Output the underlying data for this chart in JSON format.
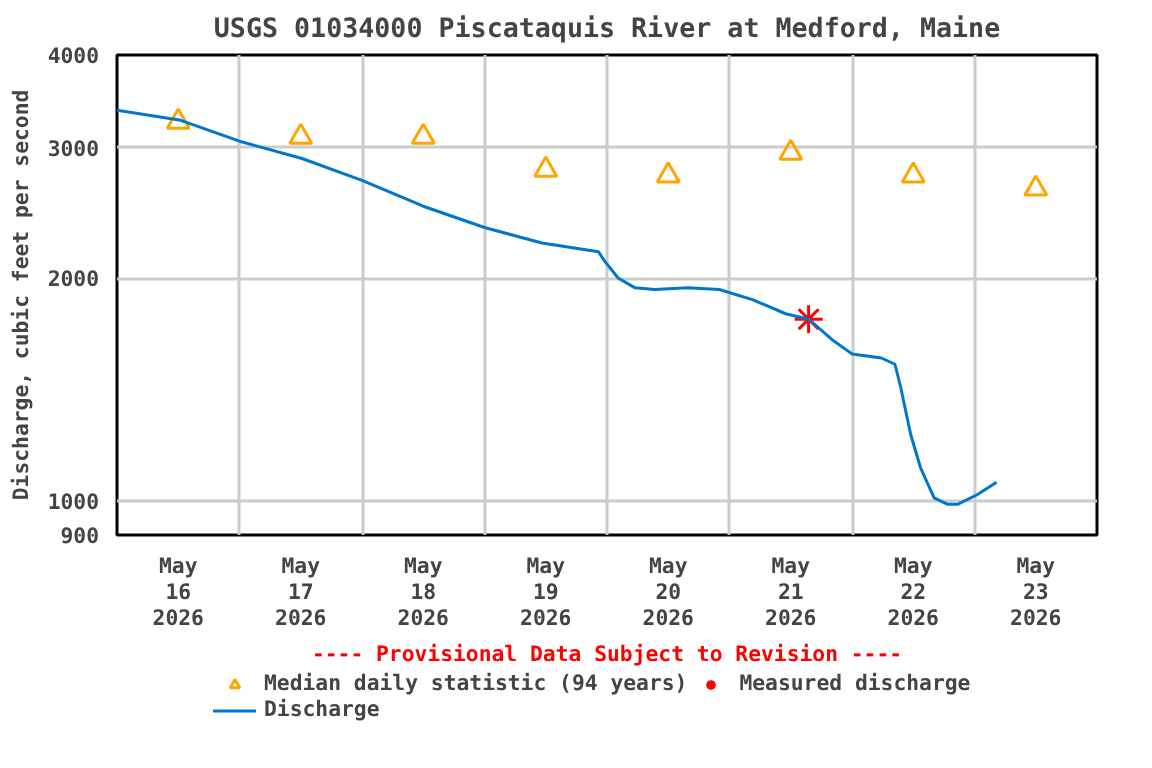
{
  "chart_data": {
    "type": "line",
    "title": "USGS 01034000 Piscataquis River at Medford, Maine",
    "ylabel": "Discharge, cubic feet per second",
    "log": "y",
    "grid": true,
    "legend": "bottom",
    "xlim": [
      "2026-05-16T00:00",
      "2026-05-24T00:00"
    ],
    "xticks": [
      {
        "value": "2026-05-16T12:00",
        "label": "May\n16\n2026"
      },
      {
        "value": "2026-05-17T12:00",
        "label": "May\n17\n2026"
      },
      {
        "value": "2026-05-18T12:00",
        "label": "May\n18\n2026"
      },
      {
        "value": "2026-05-19T12:00",
        "label": "May\n19\n2026"
      },
      {
        "value": "2026-05-20T12:00",
        "label": "May\n20\n2026"
      },
      {
        "value": "2026-05-21T12:00",
        "label": "May\n21\n2026"
      },
      {
        "value": "2026-05-22T12:00",
        "label": "May\n22\n2026"
      },
      {
        "value": "2026-05-23T12:00",
        "label": "May\n23\n2026"
      },
      {
        "value": "2026-05-17T00:00",
        "label": null
      },
      {
        "value": "2026-05-18T00:00",
        "label": null
      },
      {
        "value": "2026-05-19T00:00",
        "label": null
      },
      {
        "value": "2026-05-20T00:00",
        "label": null
      },
      {
        "value": "2026-05-21T00:00",
        "label": null
      },
      {
        "value": "2026-05-22T00:00",
        "label": null
      },
      {
        "value": "2026-05-23T00:00",
        "label": null
      }
    ],
    "ylim": [
      900,
      4000
    ],
    "yticks": [
      900,
      1000,
      2000,
      3000,
      4000
    ],
    "annotations": [
      "---- Provisional Data Subject to Revision ----"
    ],
    "series": [
      {
        "name": "Median daily statistic (94 years)",
        "type": "scatter",
        "marker": "triangle",
        "color": "#ffa500",
        "x": [
          "2026-05-16T12:00",
          "2026-05-17T12:00",
          "2026-05-18T12:00",
          "2026-05-19T12:00",
          "2026-05-20T12:00",
          "2026-05-21T12:00",
          "2026-05-22T12:00",
          "2026-05-23T12:00"
        ],
        "values": [
          3250,
          3100,
          3100,
          2800,
          2750,
          2950,
          2750,
          2640
        ]
      },
      {
        "name": "Measured discharge",
        "type": "scatter",
        "marker": "cross",
        "color": "#ff0000",
        "x": [
          "2026-05-21T15:30"
        ],
        "values": [
          1760
        ]
      },
      {
        "name": "Discharge",
        "line_style": "solid",
        "color": "#0077cc",
        "x": [
          "2026-05-16T00:00",
          "2026-05-16T12:30",
          "2026-05-17T00:00",
          "2026-05-17T12:15",
          "2026-05-18T00:00",
          "2026-05-18T12:00",
          "2026-05-19T00:00",
          "2026-05-19T11:15",
          "2026-05-19T22:20",
          "2026-05-19T23:30",
          "2026-05-20T02:10",
          "2026-05-20T05:30",
          "2026-05-20T09:20",
          "2026-05-20T15:50",
          "2026-05-20T22:00",
          "2026-05-21T04:30",
          "2026-05-21T11:00",
          "2026-05-21T15:30",
          "2026-05-21T20:10",
          "2026-05-22T00:00",
          "2026-05-22T05:45",
          "2026-05-22T08:25",
          "2026-05-22T09:35",
          "2026-05-22T11:30",
          "2026-05-22T13:25",
          "2026-05-22T16:05",
          "2026-05-22T18:45",
          "2026-05-22T20:40",
          "2026-05-23T00:30",
          "2026-05-23T04:20"
        ],
        "values": [
          3370,
          3265,
          3060,
          2900,
          2710,
          2500,
          2340,
          2230,
          2170,
          2110,
          2000,
          1940,
          1930,
          1940,
          1930,
          1870,
          1790,
          1760,
          1650,
          1580,
          1560,
          1530,
          1420,
          1230,
          1110,
          1010,
          990,
          990,
          1020,
          1060
        ]
      }
    ]
  }
}
